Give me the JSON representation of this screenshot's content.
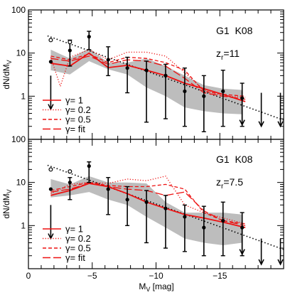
{
  "chart_data": {
    "type": "line",
    "xlabel": "M",
    "xlabel_sub": "V",
    "xlabel_unit": " [mag]",
    "ylabel": "dN/dM",
    "ylabel_sub": "V",
    "xlim": [
      0,
      -20
    ],
    "x_ticks": [
      0,
      -5,
      -10,
      -15
    ],
    "x_tick_labels": [
      "0",
      "−5",
      "−10",
      "−15"
    ],
    "ylim_log": [
      0.1,
      100
    ],
    "y_ticks": [
      1,
      10,
      100
    ],
    "y_tick_labels": [
      "1",
      "10",
      "100"
    ],
    "colors": {
      "model": "#ee1111",
      "band": "#bdbdbd",
      "data": "#000000"
    },
    "legend": [
      {
        "label": "γ= 1",
        "dash": "solid"
      },
      {
        "label": "γ= 0.2",
        "dash": "dotted"
      },
      {
        "label": "γ= 0.5",
        "dash": "dashed"
      },
      {
        "label": "γ= fit",
        "dash": "longdash"
      }
    ],
    "panels": [
      {
        "label_line1": "G1  K08",
        "label_z_main": "z",
        "label_z_sub": "r",
        "label_z_value": "=11",
        "data_points": [
          {
            "x": -1.75,
            "y": 6.3,
            "lo": 3.0,
            "up_arrow": true
          },
          {
            "x": -3.25,
            "y": 11.5,
            "lo": 5.0,
            "hi": 20.0
          },
          {
            "x": -4.75,
            "y": 24.0,
            "lo": 12.0,
            "hi": 32.0
          },
          {
            "x": -6.25,
            "y": 7.0,
            "lo": 3.0,
            "hi": 14.0
          },
          {
            "x": -7.75,
            "y": 4.5,
            "lo": 1.2,
            "hi": 8.0
          },
          {
            "x": -9.25,
            "y": 4.0,
            "lo": 0.25,
            "hi": 6.5
          },
          {
            "x": -10.75,
            "y": 3.0,
            "lo": 0.3,
            "hi": 5.5
          },
          {
            "x": -12.25,
            "y": 1.3,
            "lo": 0.2,
            "hi": 4.5
          },
          {
            "x": -13.75,
            "y": 1.0,
            "lo": 0.15,
            "hi": 3.0
          },
          {
            "x": -15.25,
            "y": 1.3,
            "lo": 0.2,
            "hi": 4.0
          },
          {
            "x": -16.75,
            "y": 0.9,
            "lo": 0.2,
            "hi": 2.0
          }
        ],
        "upper_limits": [
          {
            "x": -1.75,
            "y": 3.0
          },
          {
            "x": -16.75,
            "y": 1.3
          },
          {
            "x": -18.25,
            "y": 1.2
          },
          {
            "x": -19.75,
            "y": 1.2
          }
        ],
        "open_points": [
          {
            "x": -1.75,
            "y": 20.0
          },
          {
            "x": -3.25,
            "y": 18.0
          }
        ],
        "fit_line": {
          "x": [
            -1.5,
            -20.0
          ],
          "y": [
            25.0,
            0.28
          ]
        },
        "band": {
          "x": [
            -1.75,
            -3.25,
            -4.75,
            -6.25,
            -7.75,
            -9.25,
            -10.75,
            -12.25,
            -13.75,
            -15.25,
            -16.75
          ],
          "upper": [
            12.0,
            7.5,
            13.0,
            6.0,
            6.0,
            7.5,
            5.0,
            3.0,
            1.8,
            1.5,
            1.4
          ],
          "lower": [
            4.0,
            3.2,
            6.5,
            4.2,
            3.2,
            1.6,
            1.0,
            0.55,
            0.45,
            0.4,
            0.38
          ]
        },
        "series": [
          {
            "name": "γ= 1",
            "dash": "solid",
            "x": [
              -1.75,
              -3.25,
              -4.75,
              -6.25,
              -7.75,
              -9.25,
              -10.75,
              -12.25,
              -13.75,
              -15.25,
              -17.0
            ],
            "y": [
              5.8,
              5.0,
              10.0,
              4.6,
              5.2,
              4.0,
              3.0,
              2.0,
              1.5,
              1.1,
              0.75
            ]
          },
          {
            "name": "γ= 0.2",
            "dash": "dotted",
            "x": [
              -1.75,
              -2.5,
              -3.25,
              -4.75,
              -6.25,
              -7.75,
              -9.25,
              -10.75,
              -12.25,
              -13.75,
              -15.25,
              -17.0
            ],
            "y": [
              8.0,
              1.7,
              8.0,
              12.0,
              7.0,
              10.5,
              10.5,
              8.5,
              3.5,
              1.4,
              1.0,
              0.95
            ]
          },
          {
            "name": "γ= 0.5",
            "dash": "dashed",
            "x": [
              -1.75,
              -3.25,
              -4.75,
              -6.25,
              -7.75,
              -9.25,
              -10.75,
              -12.25,
              -13.75,
              -15.25,
              -17.0
            ],
            "y": [
              8.5,
              7.0,
              9.5,
              6.0,
              8.0,
              7.5,
              6.0,
              4.0,
              1.3,
              1.1,
              1.0
            ]
          },
          {
            "name": "γ= fit",
            "dash": "longdash",
            "x": [
              -1.75,
              -3.25,
              -4.75,
              -6.25,
              -7.75,
              -9.25,
              -10.75,
              -12.25,
              -13.75,
              -15.25,
              -17.0
            ],
            "y": [
              7.5,
              6.5,
              8.5,
              5.5,
              7.0,
              6.5,
              5.0,
              2.6,
              1.2,
              1.0,
              0.85
            ]
          }
        ]
      },
      {
        "label_line1": "G1  K08",
        "label_z_main": "z",
        "label_z_sub": "r",
        "label_z_value": "=7.5",
        "data_points": [
          {
            "x": -1.75,
            "y": 7.0,
            "lo": 3.0,
            "up_arrow": true
          },
          {
            "x": -3.25,
            "y": 10.0,
            "lo": 4.0,
            "hi": 13.0
          },
          {
            "x": -4.75,
            "y": 24.0,
            "lo": 10.0,
            "hi": 30.0
          },
          {
            "x": -6.25,
            "y": 7.0,
            "lo": 1.8,
            "hi": 13.0
          },
          {
            "x": -7.75,
            "y": 4.0,
            "lo": 1.0,
            "hi": 8.0
          },
          {
            "x": -9.25,
            "y": 3.5,
            "lo": 0.4,
            "hi": 6.5
          },
          {
            "x": -10.75,
            "y": 2.5,
            "lo": 0.3,
            "hi": 5.0
          },
          {
            "x": -12.25,
            "y": 1.6,
            "lo": 0.25,
            "hi": 3.0
          },
          {
            "x": -13.75,
            "y": 0.9,
            "lo": 0.2,
            "hi": 2.8
          },
          {
            "x": -15.25,
            "y": 1.3,
            "lo": 0.2,
            "hi": 3.5
          },
          {
            "x": -16.75,
            "y": 0.9,
            "lo": 0.2,
            "hi": 2.0
          }
        ],
        "upper_limits": [
          {
            "x": -1.75,
            "y": 3.0
          },
          {
            "x": -16.75,
            "y": 1.3
          },
          {
            "x": -18.25,
            "y": 0.5
          },
          {
            "x": -19.75,
            "y": 0.5
          }
        ],
        "open_points": [
          {
            "x": -1.75,
            "y": 20.0
          },
          {
            "x": -3.25,
            "y": 18.0
          }
        ],
        "fit_line": {
          "x": [
            -1.5,
            -20.0
          ],
          "y": [
            25.0,
            0.28
          ]
        },
        "band": {
          "x": [
            -1.75,
            -3.25,
            -4.75,
            -6.25,
            -7.75,
            -9.25,
            -10.75,
            -12.25,
            -13.75,
            -15.25,
            -16.75
          ],
          "upper": [
            12.0,
            9.0,
            14.0,
            10.0,
            10.0,
            9.5,
            3.5,
            2.0,
            2.0,
            2.0,
            1.8
          ],
          "lower": [
            4.5,
            5.0,
            6.0,
            4.0,
            3.0,
            1.6,
            0.9,
            0.5,
            0.4,
            0.35,
            0.4
          ]
        },
        "series": [
          {
            "name": "γ= 1",
            "dash": "solid",
            "x": [
              -1.75,
              -3.25,
              -4.75,
              -6.25,
              -7.75,
              -9.25,
              -10.75,
              -12.25,
              -13.75,
              -15.25,
              -17.0
            ],
            "y": [
              5.0,
              6.5,
              9.5,
              8.0,
              5.5,
              3.5,
              2.5,
              1.8,
              1.5,
              1.2,
              0.9
            ]
          },
          {
            "name": "γ= 0.2",
            "dash": "dotted",
            "x": [
              -1.75,
              -3.25,
              -4.75,
              -6.25,
              -7.75,
              -9.25,
              -10.75,
              -12.25,
              -13.75,
              -15.25,
              -17.0
            ],
            "y": [
              5.5,
              9.0,
              10.0,
              9.5,
              12.0,
              11.0,
              14.0,
              3.0,
              2.0,
              1.5,
              1.1
            ]
          },
          {
            "name": "γ= 0.5",
            "dash": "dashed",
            "x": [
              -1.75,
              -3.25,
              -4.75,
              -6.25,
              -7.75,
              -9.25,
              -10.75,
              -12.25,
              -13.75,
              -15.25,
              -17.0
            ],
            "y": [
              6.5,
              8.0,
              10.0,
              8.5,
              8.0,
              8.0,
              9.0,
              7.0,
              2.0,
              1.3,
              1.1
            ]
          },
          {
            "name": "γ= fit",
            "dash": "longdash",
            "x": [
              -1.75,
              -3.25,
              -4.75,
              -6.25,
              -7.75,
              -9.25,
              -10.75,
              -12.25,
              -13.75,
              -15.25,
              -17.0
            ],
            "y": [
              6.0,
              7.0,
              9.5,
              8.0,
              7.0,
              6.5,
              5.0,
              6.0,
              2.2,
              1.3,
              1.0
            ]
          }
        ]
      }
    ]
  }
}
